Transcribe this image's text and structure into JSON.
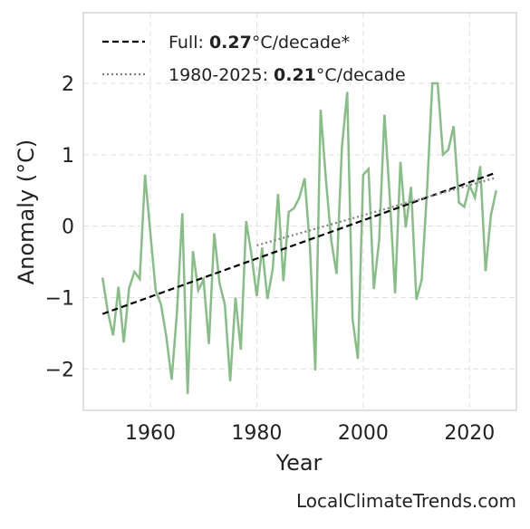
{
  "chart_data": {
    "type": "line",
    "xlabel": "Year",
    "ylabel": "Anomaly (°C)",
    "source": "LocalClimateTrends.com",
    "xlim": [
      1947.4,
      2028.8
    ],
    "ylim": [
      -2.58,
      2.99
    ],
    "xticks": [
      1960,
      1980,
      2000,
      2020
    ],
    "yticks": [
      {
        "value": -2,
        "label": "−2"
      },
      {
        "value": -1,
        "label": "−1"
      },
      0,
      1,
      2
    ],
    "grid": true,
    "legend": "upper left",
    "series": [
      {
        "color": "#86bf85",
        "style": "solid",
        "x": [
          1951,
          1952,
          1953,
          1954,
          1955,
          1956,
          1957,
          1958,
          1959,
          1960,
          1961,
          1962,
          1963,
          1964,
          1965,
          1966,
          1967,
          1968,
          1969,
          1970,
          1971,
          1972,
          1973,
          1974,
          1975,
          1976,
          1977,
          1978,
          1979,
          1980,
          1981,
          1982,
          1983,
          1984,
          1985,
          1986,
          1987,
          1988,
          1989,
          1990,
          1991,
          1992,
          1993,
          1994,
          1995,
          1996,
          1997,
          1998,
          1999,
          2000,
          2001,
          2002,
          2003,
          2004,
          2005,
          2006,
          2007,
          2008,
          2009,
          2010,
          2011,
          2012,
          2013,
          2014,
          2015,
          2016,
          2017,
          2018,
          2019,
          2020,
          2021,
          2022,
          2023,
          2024,
          2025
        ],
        "values": [
          -0.72,
          -1.2,
          -1.53,
          -0.85,
          -1.63,
          -0.87,
          -0.64,
          -0.74,
          0.72,
          -0.1,
          -0.9,
          -1.1,
          -1.55,
          -2.15,
          -1.2,
          0.18,
          -2.35,
          -0.35,
          -0.9,
          -0.75,
          -1.65,
          -0.1,
          -0.8,
          -1.1,
          -2.17,
          -1.0,
          -1.73,
          0.07,
          -0.4,
          -0.98,
          -0.3,
          -1.02,
          -0.6,
          0.45,
          -0.77,
          0.2,
          0.25,
          0.4,
          0.67,
          -0.3,
          -2.02,
          1.63,
          0.65,
          -0.2,
          -0.67,
          1.1,
          1.88,
          -1.3,
          -1.86,
          0.72,
          0.8,
          -0.88,
          -0.2,
          1.56,
          0.4,
          -0.94,
          0.9,
          -0.02,
          0.55,
          -1.03,
          -0.75,
          0.5,
          2.0,
          2.0,
          1.0,
          1.07,
          1.4,
          0.33,
          0.27,
          0.57,
          0.4,
          0.84,
          -0.63,
          0.15,
          0.5
        ]
      },
      {
        "color": "#000000",
        "style": "dashed",
        "label_parts": [
          "Full: ",
          "0.27",
          "°C/decade*"
        ],
        "x": [
          1951,
          2025
        ],
        "values": [
          -1.23,
          0.75
        ]
      },
      {
        "color": "#808080",
        "style": "dotted",
        "label_parts": [
          "1980-2025: ",
          "0.21",
          "°C/decade"
        ],
        "x": [
          1980,
          2025
        ],
        "values": [
          -0.27,
          0.68
        ]
      }
    ]
  }
}
